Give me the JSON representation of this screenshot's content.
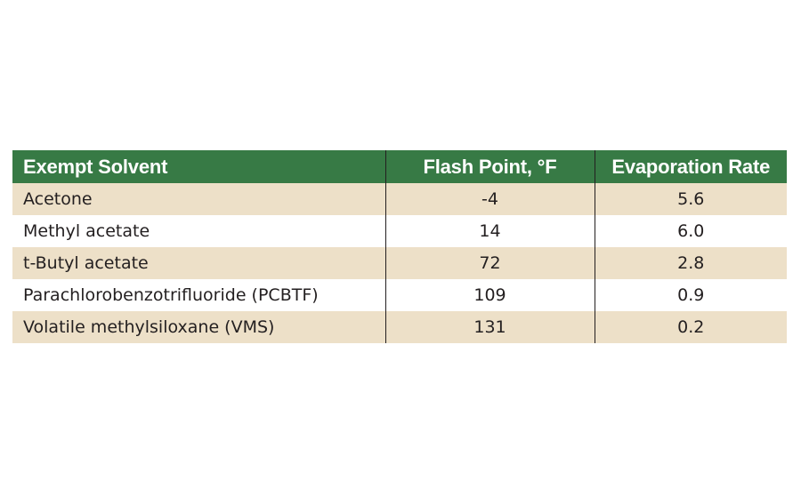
{
  "table": {
    "headers": [
      "Exempt Solvent",
      "Flash Point, °F",
      "Evaporation Rate"
    ],
    "rows": [
      [
        "Acetone",
        "-4",
        "5.6"
      ],
      [
        "Methyl acetate",
        "14",
        "6.0"
      ],
      [
        "t-Butyl acetate",
        "72",
        "2.8"
      ],
      [
        "Parachlorobenzotrifluoride (PCBTF)",
        "109",
        "0.9"
      ],
      [
        "Volatile methylsiloxane (VMS)",
        "131",
        "0.2"
      ]
    ]
  },
  "colors": {
    "header_bg": "#377a45",
    "header_text": "#ffffff",
    "shaded_row_bg": "#ede0c8",
    "plain_row_bg": "#ffffff",
    "text": "#231f20"
  }
}
